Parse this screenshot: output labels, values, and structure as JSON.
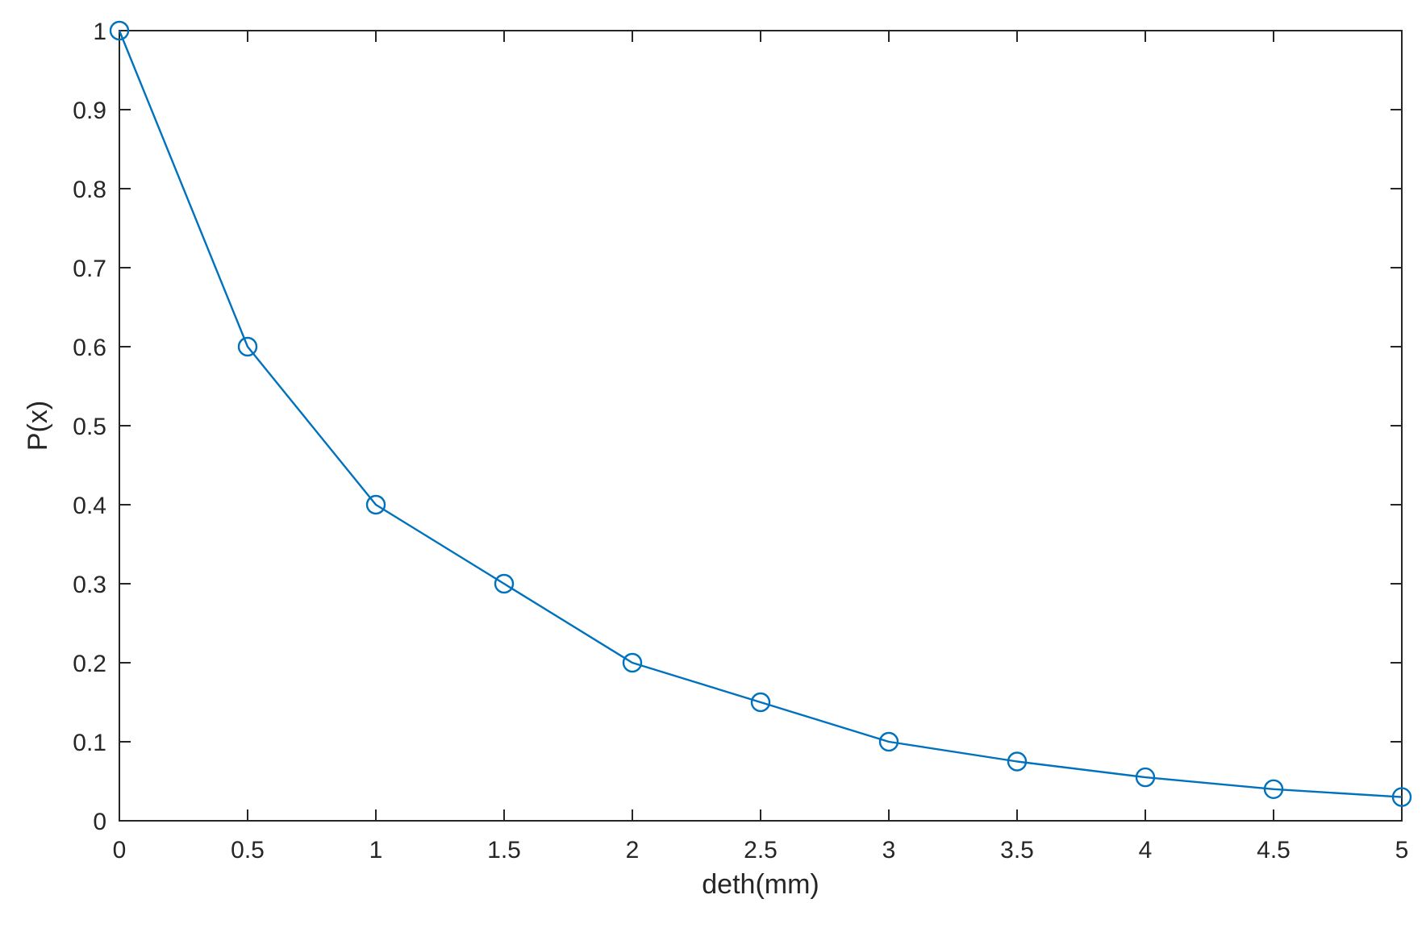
{
  "chart_data": {
    "type": "line",
    "title": "",
    "xlabel": "deth(mm)",
    "ylabel": "P(x)",
    "xlim": [
      0,
      5
    ],
    "ylim": [
      0,
      1
    ],
    "xticks": [
      "0",
      "0.5",
      "1",
      "1.5",
      "2",
      "2.5",
      "3",
      "3.5",
      "4",
      "4.5",
      "5"
    ],
    "yticks": [
      "0",
      "0.1",
      "0.2",
      "0.3",
      "0.4",
      "0.5",
      "0.6",
      "0.7",
      "0.8",
      "0.9",
      "1"
    ],
    "grid": false,
    "marker": "circle",
    "series": [
      {
        "color": "#0072BD",
        "x": [
          0,
          0.5,
          1,
          1.5,
          2,
          2.5,
          3,
          3.5,
          4,
          4.5,
          5
        ],
        "y": [
          1.0,
          0.6,
          0.4,
          0.3,
          0.2,
          0.15,
          0.1,
          0.075,
          0.055,
          0.04,
          0.03
        ]
      }
    ]
  }
}
